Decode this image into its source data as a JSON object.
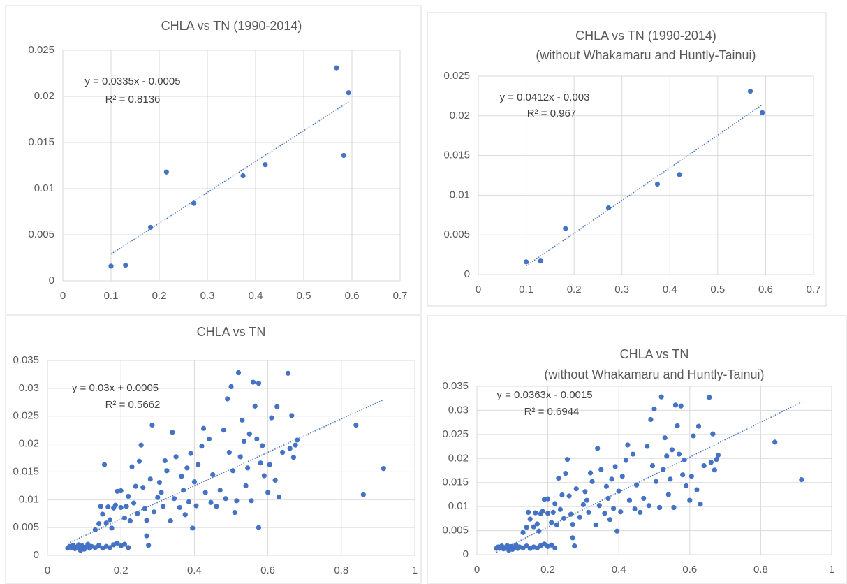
{
  "chart_data": [
    {
      "type": "scatter",
      "title": "CHLA vs TN (1990-2014)",
      "x": [
        0.1,
        0.13,
        0.182,
        0.215,
        0.272,
        0.374,
        0.42,
        0.568,
        0.583,
        0.593
      ],
      "values": [
        0.0016,
        0.0017,
        0.0058,
        0.0118,
        0.0084,
        0.0114,
        0.0126,
        0.0231,
        0.0136,
        0.0204
      ],
      "color": "#4472c4",
      "xlim": [
        0,
        0.7
      ],
      "xticks": [
        0,
        0.1,
        0.2,
        0.3,
        0.4,
        0.5,
        0.6,
        0.7
      ],
      "ylim": [
        0,
        0.025
      ],
      "yticks": [
        0,
        0.005,
        0.01,
        0.015,
        0.02,
        0.025
      ],
      "grid": true,
      "trendline": {
        "x": [
          0.1,
          0.593
        ],
        "y": [
          0.0029,
          0.0194
        ]
      },
      "equation": "y = 0.0335x - 0.0005",
      "r_squared": "R² = 0.8136"
    },
    {
      "type": "scatter",
      "title": "CHLA vs TN (1990-2014)",
      "subtitle": "(without Whakamaru and Huntly-Tainui)",
      "x": [
        0.1,
        0.13,
        0.182,
        0.272,
        0.374,
        0.42,
        0.568,
        0.593
      ],
      "values": [
        0.0016,
        0.0017,
        0.0058,
        0.0084,
        0.0114,
        0.0126,
        0.0231,
        0.0204
      ],
      "color": "#4472c4",
      "xlim": [
        0,
        0.7
      ],
      "xticks": [
        0,
        0.1,
        0.2,
        0.3,
        0.4,
        0.5,
        0.6,
        0.7
      ],
      "ylim": [
        0,
        0.025
      ],
      "yticks": [
        0,
        0.005,
        0.01,
        0.015,
        0.02,
        0.025
      ],
      "grid": true,
      "trendline": {
        "x": [
          0.1,
          0.593
        ],
        "y": [
          0.0011,
          0.0214
        ]
      },
      "equation": "y = 0.0412x - 0.003",
      "r_squared": "R² = 0.967"
    },
    {
      "type": "scatter",
      "title": "CHLA vs TN",
      "x": [
        0.055,
        0.06,
        0.065,
        0.07,
        0.075,
        0.08,
        0.085,
        0.09,
        0.095,
        0.1,
        0.105,
        0.11,
        0.115,
        0.12,
        0.13,
        0.14,
        0.15,
        0.16,
        0.17,
        0.18,
        0.19,
        0.2,
        0.21,
        0.22,
        0.09,
        0.13,
        0.14,
        0.145,
        0.15,
        0.155,
        0.16,
        0.165,
        0.17,
        0.175,
        0.18,
        0.185,
        0.19,
        0.2,
        0.2,
        0.21,
        0.215,
        0.22,
        0.225,
        0.23,
        0.235,
        0.24,
        0.245,
        0.25,
        0.255,
        0.26,
        0.265,
        0.27,
        0.27,
        0.275,
        0.28,
        0.285,
        0.29,
        0.3,
        0.305,
        0.31,
        0.315,
        0.32,
        0.325,
        0.335,
        0.34,
        0.345,
        0.35,
        0.36,
        0.365,
        0.37,
        0.375,
        0.38,
        0.385,
        0.39,
        0.395,
        0.4,
        0.405,
        0.41,
        0.42,
        0.425,
        0.43,
        0.44,
        0.445,
        0.45,
        0.46,
        0.47,
        0.48,
        0.485,
        0.49,
        0.495,
        0.5,
        0.505,
        0.51,
        0.515,
        0.52,
        0.525,
        0.53,
        0.535,
        0.54,
        0.545,
        0.55,
        0.555,
        0.56,
        0.565,
        0.57,
        0.575,
        0.575,
        0.58,
        0.585,
        0.59,
        0.6,
        0.605,
        0.61,
        0.62,
        0.625,
        0.63,
        0.64,
        0.655,
        0.66,
        0.665,
        0.67,
        0.675,
        0.68,
        0.84,
        0.86,
        0.915
      ],
      "values": [
        0.0013,
        0.0016,
        0.0014,
        0.0018,
        0.0012,
        0.0015,
        0.0019,
        0.0013,
        0.0017,
        0.0011,
        0.0015,
        0.002,
        0.0013,
        0.0016,
        0.0014,
        0.0018,
        0.0013,
        0.0016,
        0.0014,
        0.0019,
        0.0022,
        0.0017,
        0.002,
        0.0014,
        0.0009,
        0.0046,
        0.0057,
        0.0088,
        0.0074,
        0.0163,
        0.0058,
        0.0087,
        0.0064,
        0.0049,
        0.0085,
        0.009,
        0.0115,
        0.0086,
        0.0116,
        0.0067,
        0.0088,
        0.0106,
        0.0062,
        0.0159,
        0.0094,
        0.0124,
        0.0075,
        0.0169,
        0.0198,
        0.0122,
        0.0084,
        0.0063,
        0.0035,
        0.0018,
        0.0137,
        0.0234,
        0.0078,
        0.0104,
        0.0131,
        0.0113,
        0.0088,
        0.017,
        0.0152,
        0.0062,
        0.0221,
        0.0102,
        0.0177,
        0.0086,
        0.0142,
        0.0117,
        0.0073,
        0.0157,
        0.0096,
        0.0183,
        0.0049,
        0.0132,
        0.0089,
        0.0163,
        0.0196,
        0.0228,
        0.0113,
        0.0209,
        0.0095,
        0.0145,
        0.0088,
        0.0117,
        0.0225,
        0.0102,
        0.0281,
        0.0185,
        0.0303,
        0.0152,
        0.0077,
        0.0098,
        0.0328,
        0.0177,
        0.0243,
        0.0205,
        0.0125,
        0.0157,
        0.0218,
        0.0098,
        0.0311,
        0.0268,
        0.0209,
        0.0309,
        0.005,
        0.0166,
        0.0197,
        0.0143,
        0.0113,
        0.0163,
        0.0247,
        0.0135,
        0.0267,
        0.0105,
        0.0185,
        0.0327,
        0.0192,
        0.0251,
        0.0176,
        0.0198,
        0.0207,
        0.0234,
        0.0109,
        0.0156
      ],
      "color": "#4472c4",
      "xlim": [
        0,
        1
      ],
      "xticks": [
        0,
        0.2,
        0.4,
        0.6,
        0.8,
        1
      ],
      "ylim": [
        0,
        0.035
      ],
      "yticks": [
        0,
        0.005,
        0.01,
        0.015,
        0.02,
        0.025,
        0.03,
        0.035
      ],
      "grid": true,
      "trendline": {
        "x": [
          0.055,
          0.915
        ],
        "y": [
          0.00215,
          0.02795
        ]
      },
      "equation": "y = 0.03x + 0.0005",
      "r_squared": "R² = 0.5662"
    },
    {
      "type": "scatter",
      "title": "CHLA vs TN",
      "subtitle": "(without Whakamaru and Huntly-Tainui)",
      "x": [
        0.055,
        0.06,
        0.065,
        0.07,
        0.075,
        0.08,
        0.085,
        0.09,
        0.095,
        0.1,
        0.105,
        0.11,
        0.115,
        0.12,
        0.13,
        0.14,
        0.15,
        0.16,
        0.17,
        0.18,
        0.19,
        0.2,
        0.21,
        0.22,
        0.09,
        0.13,
        0.14,
        0.145,
        0.15,
        0.16,
        0.165,
        0.17,
        0.175,
        0.18,
        0.185,
        0.19,
        0.2,
        0.2,
        0.21,
        0.215,
        0.22,
        0.225,
        0.23,
        0.235,
        0.24,
        0.245,
        0.25,
        0.255,
        0.26,
        0.265,
        0.27,
        0.27,
        0.275,
        0.28,
        0.29,
        0.3,
        0.305,
        0.31,
        0.315,
        0.32,
        0.325,
        0.335,
        0.34,
        0.345,
        0.35,
        0.36,
        0.365,
        0.37,
        0.375,
        0.38,
        0.385,
        0.39,
        0.395,
        0.4,
        0.405,
        0.41,
        0.42,
        0.425,
        0.43,
        0.44,
        0.445,
        0.45,
        0.46,
        0.47,
        0.48,
        0.485,
        0.49,
        0.495,
        0.5,
        0.505,
        0.515,
        0.52,
        0.525,
        0.53,
        0.535,
        0.54,
        0.545,
        0.55,
        0.555,
        0.56,
        0.565,
        0.57,
        0.575,
        0.58,
        0.585,
        0.59,
        0.6,
        0.605,
        0.61,
        0.62,
        0.625,
        0.63,
        0.64,
        0.655,
        0.66,
        0.665,
        0.67,
        0.675,
        0.68,
        0.84,
        0.915
      ],
      "values": [
        0.0013,
        0.0016,
        0.0014,
        0.0018,
        0.0012,
        0.0015,
        0.0019,
        0.0013,
        0.0017,
        0.0011,
        0.0015,
        0.002,
        0.0013,
        0.0016,
        0.0014,
        0.0018,
        0.0013,
        0.0016,
        0.0014,
        0.0019,
        0.0022,
        0.0017,
        0.002,
        0.0014,
        0.0009,
        0.0046,
        0.0057,
        0.0088,
        0.0074,
        0.0058,
        0.0087,
        0.0064,
        0.0049,
        0.0085,
        0.009,
        0.0115,
        0.0086,
        0.0116,
        0.0067,
        0.0088,
        0.0106,
        0.0062,
        0.0159,
        0.0094,
        0.0124,
        0.0075,
        0.0169,
        0.0198,
        0.0122,
        0.0084,
        0.0063,
        0.0035,
        0.0018,
        0.0137,
        0.0078,
        0.0104,
        0.0131,
        0.0113,
        0.0088,
        0.017,
        0.0152,
        0.0062,
        0.0221,
        0.0102,
        0.0177,
        0.0086,
        0.0142,
        0.0117,
        0.0073,
        0.0157,
        0.0096,
        0.0183,
        0.0049,
        0.0132,
        0.0089,
        0.0163,
        0.0196,
        0.0228,
        0.0113,
        0.0209,
        0.0095,
        0.0145,
        0.0088,
        0.0117,
        0.0225,
        0.0102,
        0.0281,
        0.0185,
        0.0303,
        0.0152,
        0.0098,
        0.0328,
        0.0177,
        0.0243,
        0.0205,
        0.0125,
        0.0157,
        0.0218,
        0.0098,
        0.0311,
        0.0268,
        0.0209,
        0.0309,
        0.0166,
        0.0197,
        0.0143,
        0.0113,
        0.0163,
        0.0247,
        0.0135,
        0.0267,
        0.0105,
        0.0185,
        0.0327,
        0.0192,
        0.0251,
        0.0176,
        0.0198,
        0.0207,
        0.0234,
        0.0156
      ],
      "color": "#4472c4",
      "xlim": [
        0,
        1
      ],
      "xticks": [
        0,
        0.2,
        0.4,
        0.6,
        0.8,
        1
      ],
      "ylim": [
        0,
        0.035
      ],
      "yticks": [
        0,
        0.005,
        0.01,
        0.015,
        0.02,
        0.025,
        0.03,
        0.035
      ],
      "grid": true,
      "trendline": {
        "x": [
          0.055,
          0.915
        ],
        "y": [
          0.0005,
          0.0317
        ]
      },
      "equation": "y = 0.0363x - 0.0015",
      "r_squared": "R² = 0.6944"
    }
  ]
}
